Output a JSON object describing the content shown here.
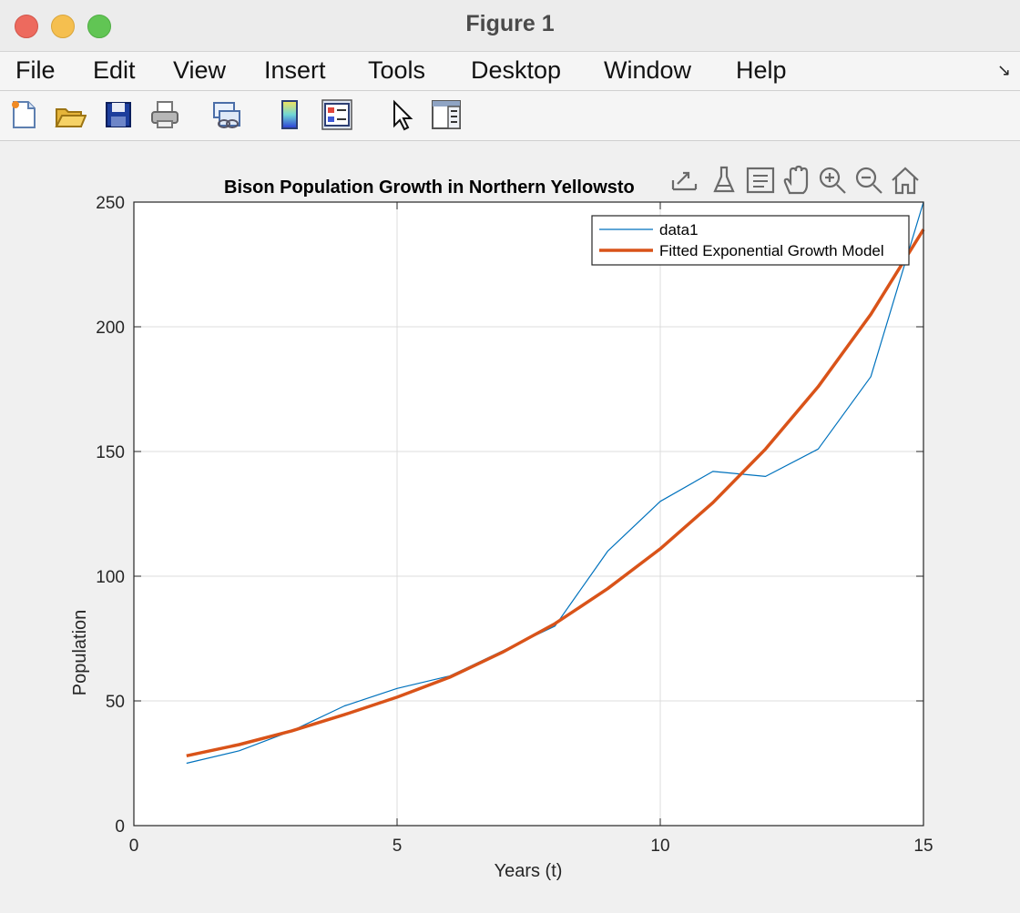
{
  "window": {
    "title": "Figure 1"
  },
  "menu": [
    "File",
    "Edit",
    "View",
    "Insert",
    "Tools",
    "Desktop",
    "Window",
    "Help"
  ],
  "toolbar_icons": [
    "new-figure-icon",
    "open-file-icon",
    "save-icon",
    "print-icon",
    "link-icon",
    "colorbar-icon",
    "legend-icon",
    "pointer-icon",
    "property-inspector-icon"
  ],
  "axes_toolbar_icons": [
    "export-icon",
    "brush-icon",
    "datatip-icon",
    "pan-icon",
    "zoom-in-icon",
    "zoom-out-icon",
    "home-icon"
  ],
  "chart_data": {
    "type": "line",
    "title": "Bison Population Growth in Northern Yellowsto",
    "xlabel": "Years (t)",
    "ylabel": "Population",
    "xlim": [
      0,
      15
    ],
    "ylim": [
      0,
      250
    ],
    "xticks": [
      0,
      5,
      10,
      15
    ],
    "yticks": [
      0,
      50,
      100,
      150,
      200,
      250
    ],
    "grid": true,
    "legend_position": "top-right",
    "series": [
      {
        "name": "data1",
        "color": "#0072bd",
        "x": [
          1,
          2,
          3,
          4,
          5,
          6,
          7,
          8,
          9,
          10,
          11,
          12,
          13,
          14,
          15
        ],
        "y": [
          25,
          30,
          38,
          48,
          55,
          60,
          70,
          80,
          110,
          130,
          142,
          140,
          151,
          180,
          250
        ]
      },
      {
        "name": "Fitted Exponential Growth Model",
        "color": "#d95319",
        "x": [
          1,
          2,
          3,
          4,
          5,
          6,
          7,
          8,
          9,
          10,
          11,
          12,
          13,
          14,
          15
        ],
        "y": [
          28,
          32.5,
          38,
          44.5,
          51.5,
          59.5,
          69.5,
          81,
          95,
          111,
          129.5,
          151,
          176,
          205,
          239
        ]
      }
    ]
  }
}
